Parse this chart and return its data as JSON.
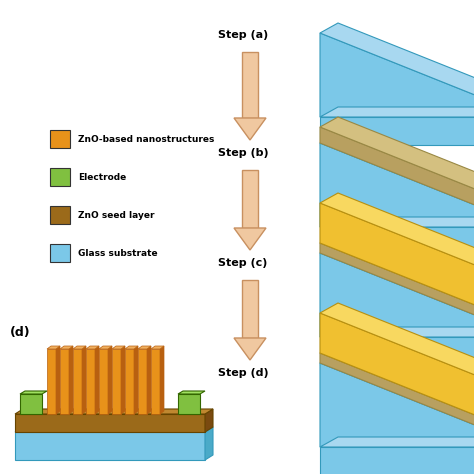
{
  "colors": {
    "glass_front": "#7BC8E8",
    "glass_top": "#A8D8F0",
    "glass_side": "#4AAAC8",
    "seed_front": "#B8A060",
    "seed_top": "#D4C080",
    "seed_side": "#907840",
    "nano_front": "#F0C030",
    "nano_top": "#F8D860",
    "nano_side": "#C09010",
    "zno_col_front": "#E8921A",
    "zno_col_side": "#B86010",
    "zno_col_top": "#F0B060",
    "electrode": "#80C040",
    "electrode_top": "#A0E060",
    "electrode_side": "#508820",
    "zno_seed_rect": "#9B6A1A",
    "zno_seed_top": "#C08830",
    "zno_seed_side": "#7A4A10",
    "arrow_fill": "#F0C8A0",
    "arrow_edge": "#C89060",
    "background": "#FFFFFF"
  },
  "legend": [
    {
      "label": "ZnO-based nanostructures",
      "color": "#E8921A"
    },
    {
      "label": "Electrode",
      "color": "#80C040"
    },
    {
      "label": "ZnO seed layer",
      "color": "#9B6A1A"
    },
    {
      "label": "Glass substrate",
      "color": "#7BC8E8"
    }
  ],
  "step_labels": [
    "Step (a)",
    "Step (b)",
    "Step (c)",
    "Step (d)"
  ],
  "label_d": "(d)"
}
